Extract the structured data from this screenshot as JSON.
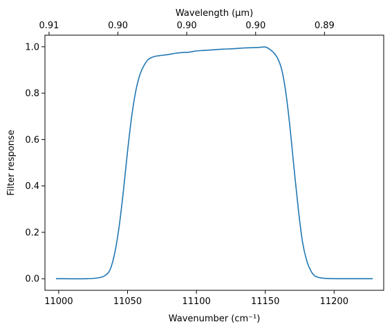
{
  "chart_data": {
    "type": "line",
    "x_axis": {
      "label": "Wavenumber (cm⁻¹)",
      "range": [
        10990,
        11236
      ],
      "ticks": [
        11000,
        11050,
        11100,
        11150,
        11200
      ],
      "tick_labels": [
        "11000",
        "11050",
        "11100",
        "11150",
        "11200"
      ]
    },
    "top_axis": {
      "label": "Wavelength (μm)",
      "tick_positions_wavenumber": [
        10993,
        11043,
        11093,
        11143,
        11193
      ],
      "tick_labels": [
        "0.91",
        "0.90",
        "0.90",
        "0.90",
        "0.89"
      ]
    },
    "y_axis": {
      "label": "Filter response",
      "range": [
        -0.05,
        1.05
      ],
      "ticks": [
        0.0,
        0.2,
        0.4,
        0.6,
        0.8,
        1.0
      ],
      "tick_labels": [
        "0.0",
        "0.2",
        "0.4",
        "0.6",
        "0.8",
        "1.0"
      ]
    },
    "grid": false,
    "series": [
      {
        "color": "#1f77b4",
        "x": [
          10998,
          11020,
          11030,
          11035,
          11038,
          11041,
          11044,
          11047,
          11050,
          11053,
          11056,
          11059,
          11062,
          11065,
          11068,
          11071,
          11075,
          11080,
          11085,
          11090,
          11095,
          11100,
          11105,
          11110,
          11115,
          11120,
          11125,
          11130,
          11135,
          11140,
          11145,
          11150,
          11153,
          11156,
          11159,
          11162,
          11165,
          11168,
          11171,
          11174,
          11177,
          11180,
          11183,
          11186,
          11190,
          11195,
          11205,
          11228
        ],
        "y": [
          0.0,
          0.0,
          0.005,
          0.02,
          0.05,
          0.12,
          0.23,
          0.38,
          0.55,
          0.7,
          0.81,
          0.88,
          0.92,
          0.945,
          0.955,
          0.96,
          0.963,
          0.967,
          0.972,
          0.975,
          0.977,
          0.982,
          0.984,
          0.986,
          0.988,
          0.99,
          0.991,
          0.993,
          0.995,
          0.996,
          0.997,
          0.999,
          0.99,
          0.975,
          0.95,
          0.9,
          0.8,
          0.65,
          0.47,
          0.3,
          0.16,
          0.08,
          0.035,
          0.012,
          0.004,
          0.001,
          0.0,
          0.0
        ]
      }
    ]
  }
}
